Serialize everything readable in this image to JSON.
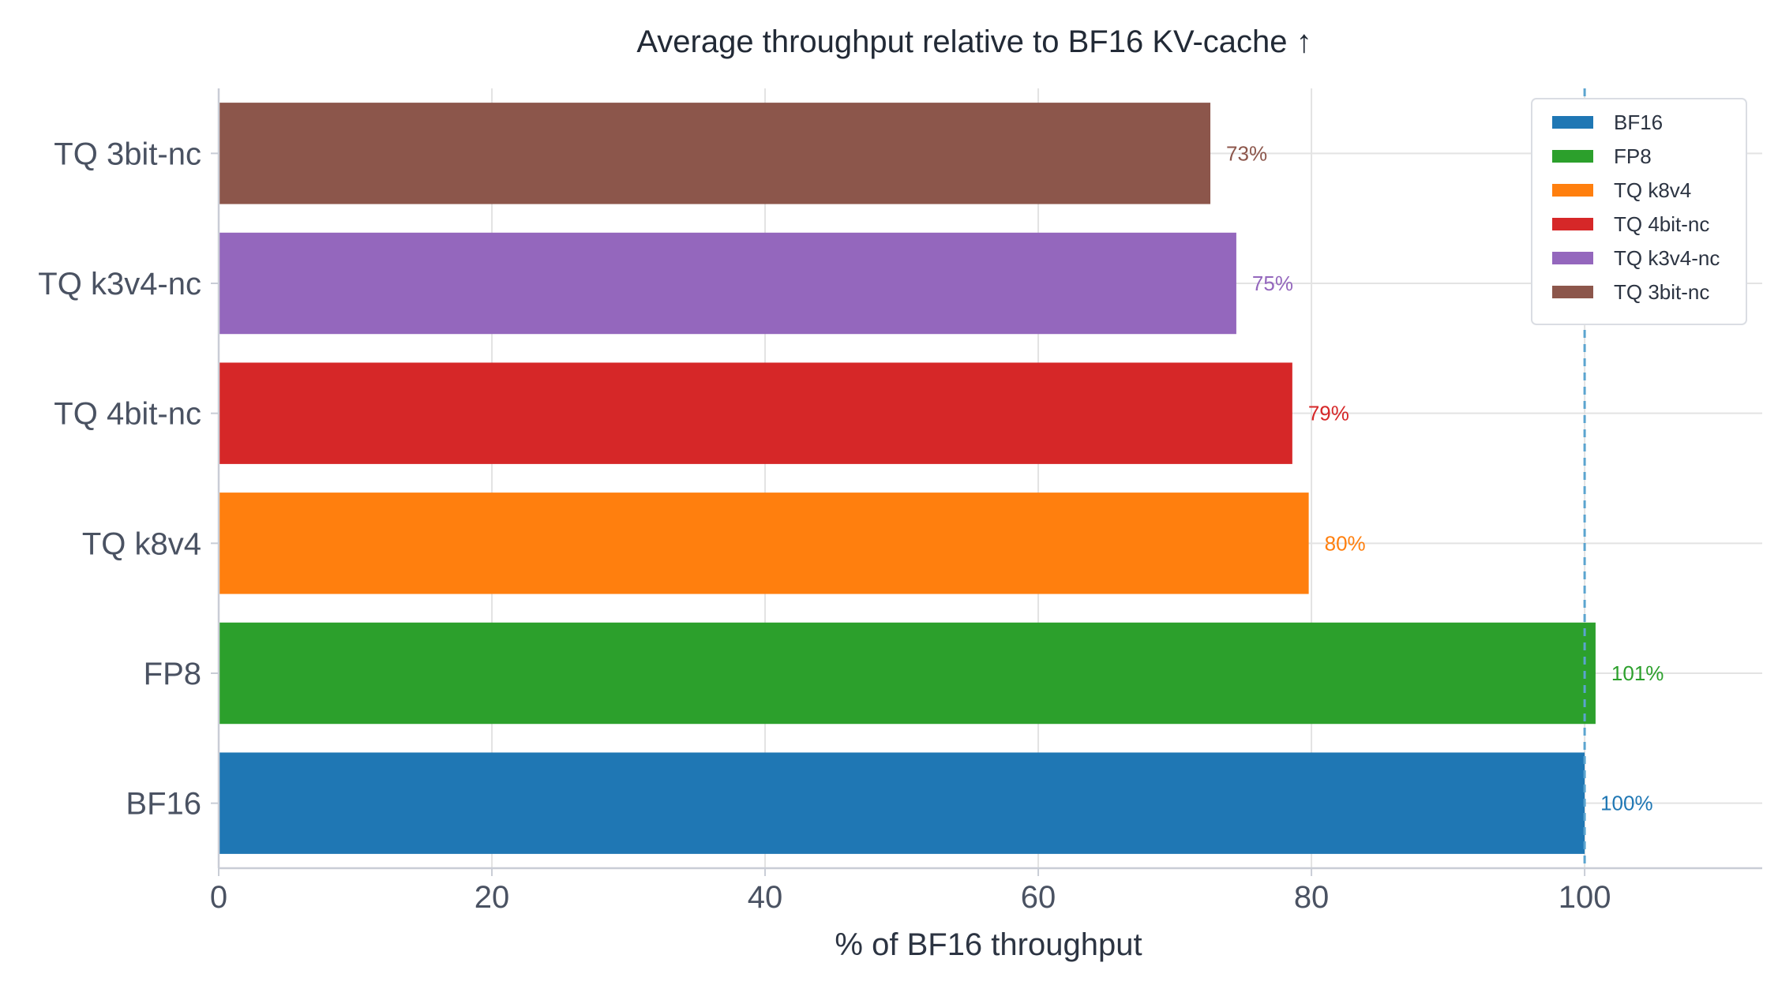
{
  "chart_data": {
    "type": "bar",
    "orientation": "horizontal",
    "title": "Average throughput relative to BF16 KV-cache  ↑",
    "xlabel": "% of BF16 throughput",
    "ylabel": "",
    "xlim": [
      0,
      113
    ],
    "xticks": [
      0,
      20,
      40,
      60,
      80,
      100
    ],
    "grid": true,
    "legend_position": "top-right",
    "reference_line": {
      "value": 100,
      "style": "dashed",
      "color": "#5ba4cf"
    },
    "categories": [
      "BF16",
      "FP8",
      "TQ k8v4",
      "TQ 4bit-nc",
      "TQ k3v4-nc",
      "TQ 3bit-nc"
    ],
    "values": [
      100,
      100.8,
      79.8,
      78.6,
      74.5,
      72.6
    ],
    "value_labels": [
      "100%",
      "101%",
      "80%",
      "79%",
      "75%",
      "73%"
    ],
    "colors": [
      "#1f77b4",
      "#2ca02c",
      "#ff7f0e",
      "#d62728",
      "#9467bd",
      "#8c564b"
    ],
    "legend": [
      "BF16",
      "FP8",
      "TQ k8v4",
      "TQ 4bit-nc",
      "TQ k3v4-nc",
      "TQ 3bit-nc"
    ]
  }
}
